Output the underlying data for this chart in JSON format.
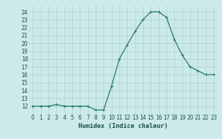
{
  "x": [
    0,
    1,
    2,
    3,
    4,
    5,
    6,
    7,
    8,
    9,
    10,
    11,
    12,
    13,
    14,
    15,
    16,
    17,
    18,
    19,
    20,
    21,
    22,
    23
  ],
  "y": [
    12,
    12,
    12,
    12.2,
    12,
    12,
    12,
    12,
    11.5,
    11.5,
    14.5,
    18,
    19.8,
    21.5,
    23,
    24,
    24,
    23.3,
    20.5,
    18.5,
    17,
    16.5,
    16,
    16
  ],
  "line_color": "#2d7d6e",
  "marker": "+",
  "marker_size": 3,
  "line_width": 1.0,
  "bg_color": "#cceaea",
  "grid_color": "#aacfcf",
  "xlabel": "Humidex (Indice chaleur)",
  "xlim": [
    -0.5,
    23.5
  ],
  "ylim": [
    11,
    24.8
  ],
  "yticks": [
    12,
    13,
    14,
    15,
    16,
    17,
    18,
    19,
    20,
    21,
    22,
    23,
    24
  ],
  "xticks": [
    0,
    1,
    2,
    3,
    4,
    5,
    6,
    7,
    8,
    9,
    10,
    11,
    12,
    13,
    14,
    15,
    16,
    17,
    18,
    19,
    20,
    21,
    22,
    23
  ],
  "tick_fontsize": 5.5,
  "xlabel_fontsize": 6.5
}
